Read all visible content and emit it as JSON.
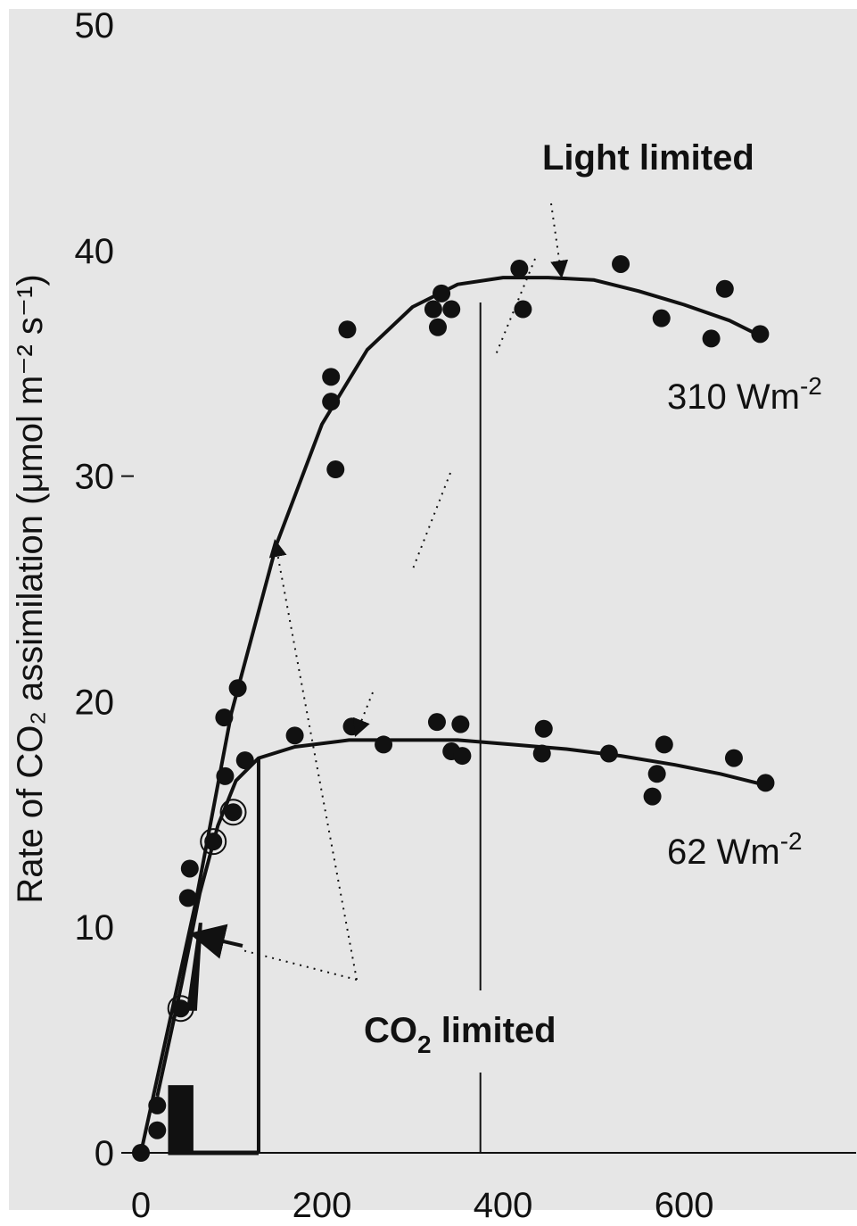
{
  "chart_data": {
    "type": "scatter",
    "ylabel": "Rate of CO₂ assimilation (μmol m⁻² s⁻¹)",
    "xlabel": "",
    "xlim": [
      0,
      790
    ],
    "ylim": [
      0,
      50
    ],
    "x_ticks": [
      {
        "value": 0,
        "label": "0"
      },
      {
        "value": 200,
        "label": "200"
      },
      {
        "value": 400,
        "label": "400"
      },
      {
        "value": 600,
        "label": "600"
      }
    ],
    "y_ticks": [
      {
        "value": 0,
        "label": "0"
      },
      {
        "value": 10,
        "label": "10"
      },
      {
        "value": 20,
        "label": "20"
      },
      {
        "value": 30,
        "label": "30"
      },
      {
        "value": 40,
        "label": "40"
      },
      {
        "value": 50,
        "label": "50"
      }
    ],
    "grid": false,
    "colors": {
      "background": "#e6e6e6",
      "ink": "#111111"
    },
    "series": [
      {
        "name": "310 Wm-2",
        "points": [
          [
            107,
            20.6
          ],
          [
            92,
            19.3
          ],
          [
            93,
            16.7
          ],
          [
            210,
            34.4
          ],
          [
            210,
            33.3
          ],
          [
            215,
            30.3
          ],
          [
            228,
            36.5
          ],
          [
            323,
            37.4
          ],
          [
            328,
            36.6
          ],
          [
            332,
            38.1
          ],
          [
            343,
            37.4
          ],
          [
            418,
            39.2
          ],
          [
            422,
            37.4
          ],
          [
            530,
            39.4
          ],
          [
            575,
            37.0
          ],
          [
            630,
            36.1
          ],
          [
            645,
            38.3
          ],
          [
            684,
            36.3
          ]
        ],
        "curve": [
          [
            0,
            0
          ],
          [
            60,
            11
          ],
          [
            100,
            19.5
          ],
          [
            150,
            27
          ],
          [
            200,
            32.3
          ],
          [
            250,
            35.6
          ],
          [
            300,
            37.5
          ],
          [
            350,
            38.5
          ],
          [
            400,
            38.8
          ],
          [
            450,
            38.8
          ],
          [
            500,
            38.7
          ],
          [
            550,
            38.2
          ],
          [
            600,
            37.6
          ],
          [
            650,
            36.9
          ],
          [
            680,
            36.3
          ]
        ]
      },
      {
        "name": "62 Wm-2",
        "points": [
          [
            0,
            0
          ],
          [
            18,
            1.0
          ],
          [
            18,
            2.1
          ],
          [
            44,
            6.4
          ],
          [
            52,
            11.3
          ],
          [
            54,
            12.6
          ],
          [
            80,
            13.8
          ],
          [
            102,
            15.1
          ],
          [
            115,
            17.4
          ],
          [
            170,
            18.5
          ],
          [
            233,
            18.9
          ],
          [
            268,
            18.1
          ],
          [
            327,
            19.1
          ],
          [
            353,
            19.0
          ],
          [
            343,
            17.8
          ],
          [
            355,
            17.6
          ],
          [
            445,
            18.8
          ],
          [
            443,
            17.7
          ],
          [
            517,
            17.7
          ],
          [
            570,
            16.8
          ],
          [
            565,
            15.8
          ],
          [
            578,
            18.1
          ],
          [
            655,
            17.5
          ],
          [
            690,
            16.4
          ]
        ],
        "open_points": [
          [
            44,
            6.4
          ],
          [
            80,
            13.8
          ],
          [
            102,
            15.1
          ]
        ],
        "curve": [
          [
            18,
            2.5
          ],
          [
            45,
            7.5
          ],
          [
            65,
            11.5
          ],
          [
            85,
            14.5
          ],
          [
            105,
            16.5
          ],
          [
            130,
            17.5
          ],
          [
            170,
            18.0
          ],
          [
            230,
            18.3
          ],
          [
            290,
            18.3
          ],
          [
            350,
            18.3
          ],
          [
            410,
            18.1
          ],
          [
            470,
            17.9
          ],
          [
            530,
            17.6
          ],
          [
            590,
            17.2
          ],
          [
            640,
            16.8
          ],
          [
            690,
            16.3
          ]
        ]
      }
    ],
    "annotations": {
      "light_limited": "Light limited",
      "co2_limited_prefix": "CO",
      "co2_limited_sub": "2",
      "co2_limited_suffix": " limited",
      "label_310": "310 Wm",
      "label_310_sup": "-2",
      "label_62": "62 Wm",
      "label_62_sup": "-2"
    },
    "vertical_guides": [
      130,
      375
    ],
    "rise_markers": {
      "step1": {
        "x0": 30,
        "x1": 58,
        "y": 3
      },
      "step2": {
        "x0": 58,
        "x1": 130,
        "y": 9
      }
    }
  }
}
